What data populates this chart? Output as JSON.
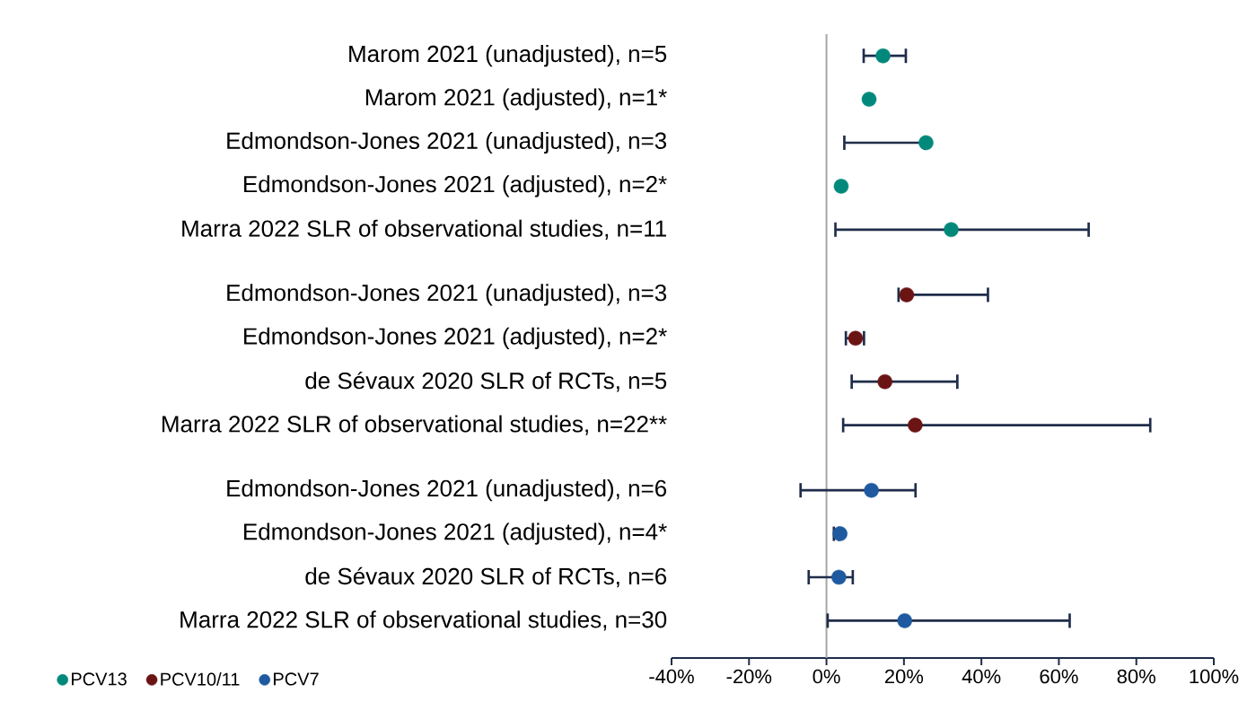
{
  "chart_data": {
    "type": "scatter",
    "orientation": "horizontal",
    "categories": [
      "Marom 2021 (unadjusted), n=5",
      "Marom 2021 (adjusted), n=1*",
      "Edmondson-Jones 2021 (unadjusted), n=3",
      "Edmondson-Jones 2021 (adjusted), n=2*",
      "Marra 2022 SLR of observational studies, n=11",
      null,
      "Edmondson-Jones 2021 (unadjusted), n=3",
      "Edmondson-Jones 2021 (adjusted), n=2*",
      "de Sévaux 2020 SLR of RCTs, n=5",
      "Marra 2022 SLR of observational studies, n=22**",
      null,
      "Edmondson-Jones 2021 (unadjusted), n=6",
      "Edmondson-Jones 2021 (adjusted), n=4*",
      "de Sévaux 2020 SLR of RCTs, n=6",
      "Marra 2022 SLR of observational studies, n=30"
    ],
    "series": [
      {
        "name": "PCV13",
        "color": "#00897b",
        "values": [
          14.6,
          11,
          25.7,
          3.8,
          32.2,
          null,
          null,
          null,
          null,
          null,
          null,
          null,
          null,
          null,
          null
        ],
        "errors": [
          [
            9.3,
            20.8
          ],
          null,
          [
            4.3,
            25.7
          ],
          null,
          [
            2,
            68
          ],
          null,
          null,
          null,
          null,
          null,
          null,
          null,
          null,
          null,
          null
        ]
      },
      {
        "name": "PCV10/11",
        "color": "#6b1414",
        "values": [
          null,
          null,
          null,
          null,
          null,
          null,
          20.7,
          7.5,
          15.1,
          22.9,
          null,
          null,
          null,
          null,
          null
        ],
        "errors": [
          null,
          null,
          null,
          null,
          null,
          null,
          [
            18.3,
            42
          ],
          [
            4.7,
            10
          ],
          [
            6.2,
            34.1
          ],
          [
            4,
            83.9
          ],
          null,
          null,
          null,
          null,
          null
        ]
      },
      {
        "name": "PCV7",
        "color": "#1f5aa0",
        "values": [
          null,
          null,
          null,
          null,
          null,
          null,
          null,
          null,
          null,
          null,
          null,
          11.6,
          3.5,
          3.2,
          20.2
        ],
        "errors": [
          null,
          null,
          null,
          null,
          null,
          null,
          null,
          null,
          null,
          null,
          null,
          [
            -7,
            23.3
          ],
          [
            1.6,
            3.5
          ],
          [
            -4.9,
            7.1
          ],
          [
            0,
            63.1
          ]
        ]
      }
    ],
    "xlim": [
      -40,
      100
    ],
    "xticks": [
      {
        "value": -40,
        "label": "-40%"
      },
      {
        "value": -20,
        "label": "-20%"
      },
      {
        "value": 0,
        "label": "0%"
      },
      {
        "value": 20,
        "label": "20%"
      },
      {
        "value": 40,
        "label": "40%"
      },
      {
        "value": 60,
        "label": "60%"
      },
      {
        "value": 80,
        "label": "80%"
      },
      {
        "value": 100,
        "label": "100%"
      }
    ],
    "ref_lines": [
      {
        "axis": "x",
        "value": 0,
        "color": "#a6a6a6"
      }
    ],
    "grid": false,
    "legend": "bottom left",
    "marker": "circle"
  }
}
